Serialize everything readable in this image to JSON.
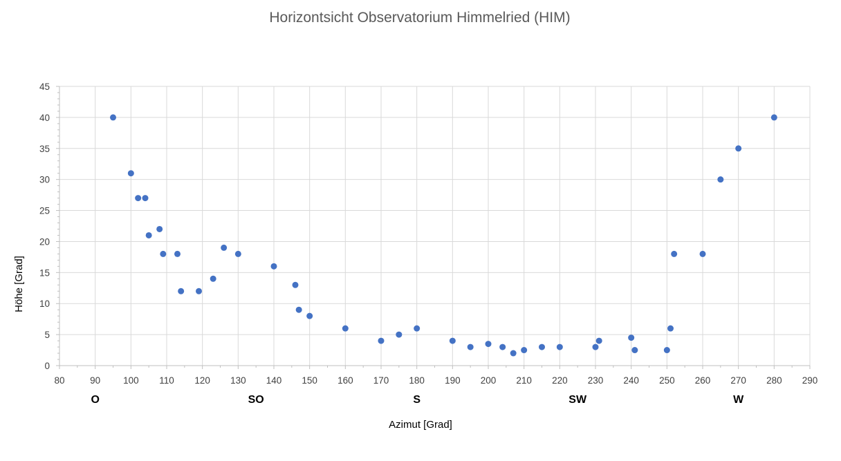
{
  "chart_data": {
    "type": "scatter",
    "title": "Horizontsicht Observatorium Himmelried (HIM)",
    "xlabel": "Azimut [Grad]",
    "ylabel": "Höhe [Grad]",
    "xlim": [
      80,
      290
    ],
    "ylim": [
      0,
      45
    ],
    "x_ticks": [
      80,
      90,
      100,
      110,
      120,
      130,
      140,
      150,
      160,
      170,
      180,
      190,
      200,
      210,
      220,
      230,
      240,
      250,
      260,
      270,
      280,
      290
    ],
    "y_ticks": [
      0,
      5,
      10,
      15,
      20,
      25,
      30,
      35,
      40,
      45
    ],
    "grid": true,
    "legend": "none",
    "marker_color": "#4472c4",
    "direction_labels": [
      {
        "label": "O",
        "azimuth": 90
      },
      {
        "label": "SO",
        "azimuth": 135
      },
      {
        "label": "S",
        "azimuth": 180
      },
      {
        "label": "SW",
        "azimuth": 225
      },
      {
        "label": "W",
        "azimuth": 270
      }
    ],
    "points": [
      {
        "x": 95,
        "y": 40
      },
      {
        "x": 100,
        "y": 31
      },
      {
        "x": 102,
        "y": 27
      },
      {
        "x": 104,
        "y": 27
      },
      {
        "x": 105,
        "y": 21
      },
      {
        "x": 108,
        "y": 22
      },
      {
        "x": 109,
        "y": 18
      },
      {
        "x": 113,
        "y": 18
      },
      {
        "x": 114,
        "y": 12
      },
      {
        "x": 119,
        "y": 12
      },
      {
        "x": 123,
        "y": 14
      },
      {
        "x": 126,
        "y": 19
      },
      {
        "x": 130,
        "y": 18
      },
      {
        "x": 140,
        "y": 16
      },
      {
        "x": 146,
        "y": 13
      },
      {
        "x": 147,
        "y": 9
      },
      {
        "x": 150,
        "y": 8
      },
      {
        "x": 160,
        "y": 6
      },
      {
        "x": 170,
        "y": 4
      },
      {
        "x": 175,
        "y": 5
      },
      {
        "x": 180,
        "y": 6
      },
      {
        "x": 190,
        "y": 4
      },
      {
        "x": 195,
        "y": 3
      },
      {
        "x": 200,
        "y": 3.5
      },
      {
        "x": 204,
        "y": 3
      },
      {
        "x": 207,
        "y": 2
      },
      {
        "x": 210,
        "y": 2.5
      },
      {
        "x": 215,
        "y": 3
      },
      {
        "x": 220,
        "y": 3
      },
      {
        "x": 230,
        "y": 3
      },
      {
        "x": 231,
        "y": 4
      },
      {
        "x": 240,
        "y": 4.5
      },
      {
        "x": 241,
        "y": 2.5
      },
      {
        "x": 250,
        "y": 2.5
      },
      {
        "x": 251,
        "y": 6
      },
      {
        "x": 252,
        "y": 18
      },
      {
        "x": 260,
        "y": 18
      },
      {
        "x": 265,
        "y": 30
      },
      {
        "x": 270,
        "y": 35
      },
      {
        "x": 280,
        "y": 40
      }
    ]
  }
}
